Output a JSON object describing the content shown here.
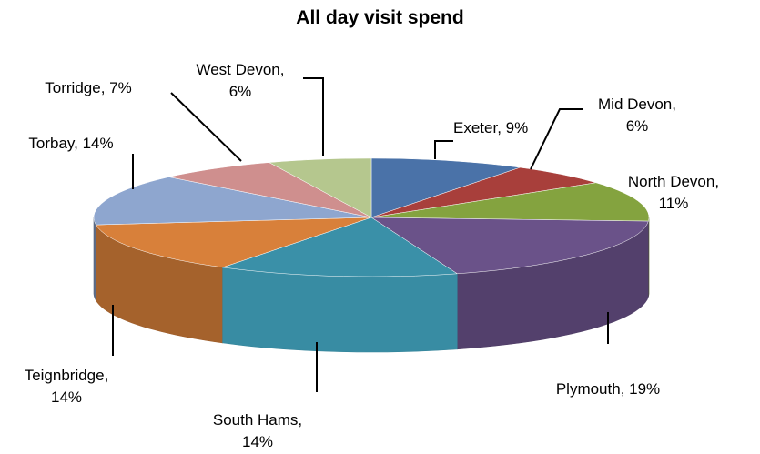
{
  "chart_data": {
    "type": "pie",
    "title": "All day visit spend",
    "style": "3d-exploded-none",
    "slices": [
      {
        "name": "Exeter",
        "value": 9,
        "label": "Exeter, 9%",
        "color": "#4a72a8"
      },
      {
        "name": "Mid Devon",
        "value": 6,
        "label": "Mid Devon,|6%",
        "color": "#a83f3b"
      },
      {
        "name": "North Devon",
        "value": 11,
        "label": "North Devon,|11%",
        "color": "#84a33f"
      },
      {
        "name": "Plymouth",
        "value": 19,
        "label": "Plymouth, 19%",
        "color": "#6a5289"
      },
      {
        "name": "South Hams",
        "value": 14,
        "label": "South Hams,|14%",
        "color": "#3a90a8"
      },
      {
        "name": "Teignbridge",
        "value": 14,
        "label": "Teignbridge,|14%",
        "color": "#d8803a"
      },
      {
        "name": "Torbay",
        "value": 14,
        "label": "Torbay, 14%",
        "color": "#8ea6cf"
      },
      {
        "name": "Torridge",
        "value": 7,
        "label": "Torridge, 7%",
        "color": "#cf8f8e"
      },
      {
        "name": "West Devon",
        "value": 6,
        "label": "West Devon,|6%",
        "color": "#b5c78e"
      }
    ]
  }
}
